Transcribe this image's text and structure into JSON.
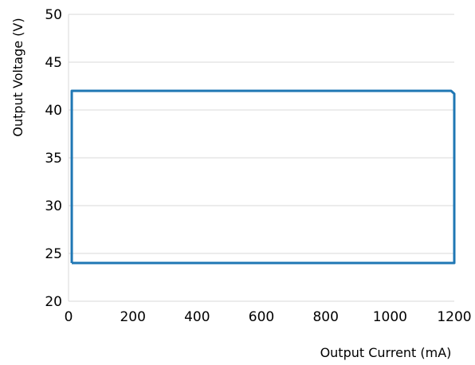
{
  "chart_data": {
    "type": "line",
    "title": "",
    "xlabel": "Output Current (mA)",
    "ylabel": "Output Voltage (V)",
    "xlim": [
      0,
      1200
    ],
    "ylim": [
      20,
      50
    ],
    "xticks": [
      0,
      200,
      400,
      600,
      800,
      1000,
      1200
    ],
    "yticks": [
      20,
      25,
      30,
      35,
      40,
      45,
      50
    ],
    "grid": true,
    "legend": "none",
    "series": [
      {
        "color": "#1f77b4",
        "x": [
          10,
          10,
          1190,
          1200,
          1200,
          10
        ],
        "y": [
          24,
          42,
          42,
          41.7,
          24,
          24
        ]
      }
    ]
  }
}
